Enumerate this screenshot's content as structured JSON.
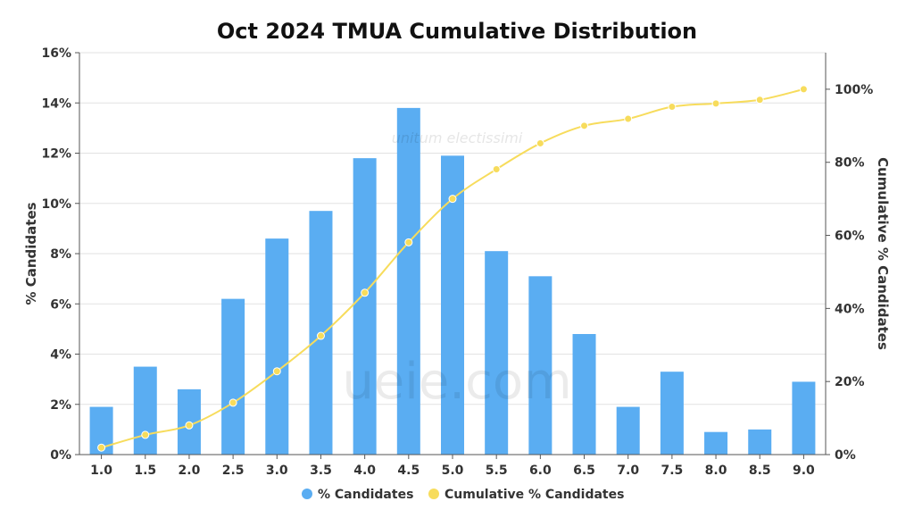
{
  "chart_data": {
    "type": "bar",
    "title": "Oct 2024 TMUA Cumulative Distribution",
    "xlabel": "",
    "ylabel": "% Candidates",
    "y2label": "Cumulative % Candidates",
    "categories": [
      "1.0",
      "1.5",
      "2.0",
      "2.5",
      "3.0",
      "3.5",
      "4.0",
      "4.5",
      "5.0",
      "5.5",
      "6.0",
      "6.5",
      "7.0",
      "7.5",
      "8.0",
      "8.5",
      "9.0"
    ],
    "series": [
      {
        "name": "% Candidates",
        "type": "bar",
        "axis": "left",
        "color": "#5aadf2",
        "values": [
          1.9,
          3.5,
          2.6,
          6.2,
          8.6,
          9.7,
          11.8,
          13.8,
          11.9,
          8.1,
          7.1,
          4.8,
          1.9,
          3.3,
          0.9,
          1.0,
          2.9
        ]
      },
      {
        "name": "Cumulative % Candidates",
        "type": "line",
        "axis": "right",
        "color": "#f7dc5c",
        "values": [
          1.9,
          5.4,
          8.0,
          14.2,
          22.8,
          32.5,
          44.3,
          58.1,
          70.0,
          78.1,
          85.2,
          90.0,
          91.9,
          95.2,
          96.1,
          97.1,
          100.0
        ]
      }
    ],
    "ylim": [
      0,
      16
    ],
    "yticks": [
      "0%",
      "2%",
      "4%",
      "6%",
      "8%",
      "10%",
      "12%",
      "14%",
      "16%"
    ],
    "y2lim": [
      0,
      110
    ],
    "y2ticks": [
      "0%",
      "20%",
      "40%",
      "60%",
      "80%",
      "100%"
    ],
    "grid": true,
    "legend": "bottom"
  },
  "watermark": {
    "text": "ueie.com",
    "motto": "unitum electissimi"
  }
}
